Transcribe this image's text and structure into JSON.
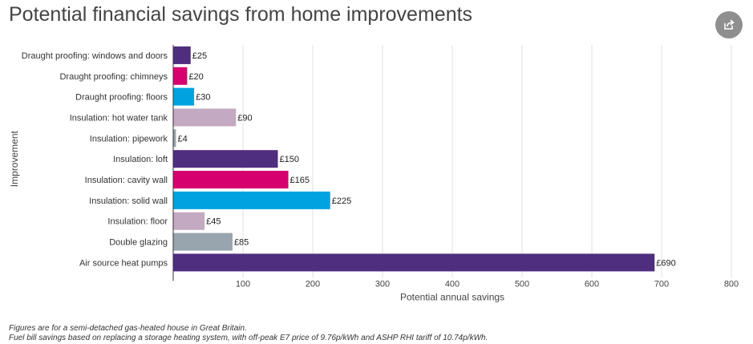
{
  "page": {
    "title": "Potential financial savings from home improvements",
    "share_icon": "share-icon"
  },
  "chart_data": {
    "type": "bar",
    "orientation": "horizontal",
    "xlabel": "Potential annual savings",
    "ylabel": "Improvement",
    "xlim": [
      0,
      800
    ],
    "xticks": [
      100,
      200,
      300,
      400,
      500,
      600,
      700,
      800
    ],
    "grid": true,
    "value_prefix": "£",
    "categories": [
      "Draught proofing: windows and doors",
      "Draught proofing: chimneys",
      "Draught proofing: floors",
      "Insulation: hot water tank",
      "Insulation: pipework",
      "Insulation: loft",
      "Insulation: cavity wall",
      "Insulation: solid wall",
      "Insulation: floor",
      "Double glazing",
      "Air source heat pumps"
    ],
    "values": [
      25,
      20,
      30,
      90,
      4,
      150,
      165,
      225,
      45,
      85,
      690
    ],
    "colors": [
      "#4f2d7f",
      "#d6006e",
      "#00a3e0",
      "#c4a9c2",
      "#9aa4ad",
      "#4f2d7f",
      "#d6006e",
      "#00a3e0",
      "#c4a9c2",
      "#98a4ae",
      "#4f2d7f"
    ]
  },
  "footnotes": [
    "Figures are for a semi-detached gas-heated house in Great Britain.",
    "Fuel bill savings based on replacing a storage heating system, with off-peak E7 price of 9.76p/kWh and ASHP RHI tariff of 10.74p/kWh."
  ]
}
